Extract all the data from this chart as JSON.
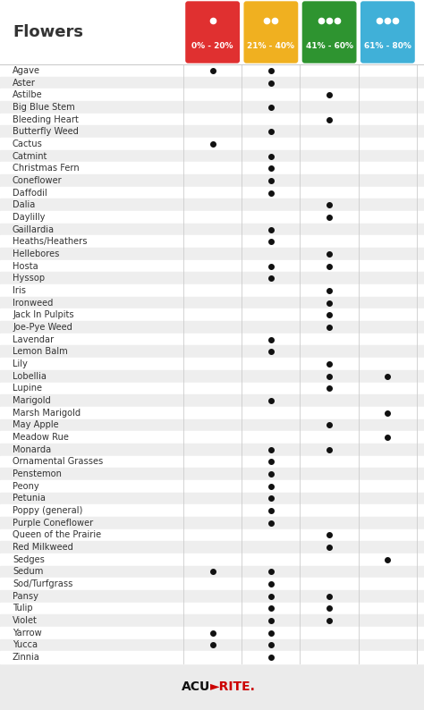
{
  "title": "Flowers",
  "columns": [
    "0% - 20%",
    "21% - 40%",
    "41% - 60%",
    "61% - 80%"
  ],
  "col_colors": [
    "#e03030",
    "#f0b020",
    "#2e9430",
    "#40b0d8"
  ],
  "flowers": [
    "Agave",
    "Aster",
    "Astilbe",
    "Big Blue Stem",
    "Bleeding Heart",
    "Butterfly Weed",
    "Cactus",
    "Catmint",
    "Christmas Fern",
    "Coneflower",
    "Daffodil",
    "Dalia",
    "Daylilly",
    "Gaillardia",
    "Heaths/Heathers",
    "Hellebores",
    "Hosta",
    "Hyssop",
    "Iris",
    "Ironweed",
    "Jack In Pulpits",
    "Joe-Pye Weed",
    "Lavendar",
    "Lemon Balm",
    "Lily",
    "Lobellia",
    "Lupine",
    "Marigold",
    "Marsh Marigold",
    "May Apple",
    "Meadow Rue",
    "Monarda",
    "Ornamental Grasses",
    "Penstemon",
    "Peony",
    "Petunia",
    "Poppy (general)",
    "Purple Coneflower",
    "Queen of the Prairie",
    "Red Milkweed",
    "Sedges",
    "Sedum",
    "Sod/Turfgrass",
    "Pansy",
    "Tulip",
    "Violet",
    "Yarrow",
    "Yucca",
    "Zinnia"
  ],
  "dots": {
    "Agave": [
      1,
      1,
      0,
      0
    ],
    "Aster": [
      0,
      1,
      0,
      0
    ],
    "Astilbe": [
      0,
      0,
      1,
      0
    ],
    "Big Blue Stem": [
      0,
      1,
      0,
      0
    ],
    "Bleeding Heart": [
      0,
      0,
      1,
      0
    ],
    "Butterfly Weed": [
      0,
      1,
      0,
      0
    ],
    "Cactus": [
      1,
      0,
      0,
      0
    ],
    "Catmint": [
      0,
      1,
      0,
      0
    ],
    "Christmas Fern": [
      0,
      1,
      0,
      0
    ],
    "Coneflower": [
      0,
      1,
      0,
      0
    ],
    "Daffodil": [
      0,
      1,
      0,
      0
    ],
    "Dalia": [
      0,
      0,
      1,
      0
    ],
    "Daylilly": [
      0,
      0,
      1,
      0
    ],
    "Gaillardia": [
      0,
      1,
      0,
      0
    ],
    "Heaths/Heathers": [
      0,
      1,
      0,
      0
    ],
    "Hellebores": [
      0,
      0,
      1,
      0
    ],
    "Hosta": [
      0,
      1,
      1,
      0
    ],
    "Hyssop": [
      0,
      1,
      0,
      0
    ],
    "Iris": [
      0,
      0,
      1,
      0
    ],
    "Ironweed": [
      0,
      0,
      1,
      0
    ],
    "Jack In Pulpits": [
      0,
      0,
      1,
      0
    ],
    "Joe-Pye Weed": [
      0,
      0,
      1,
      0
    ],
    "Lavendar": [
      0,
      1,
      0,
      0
    ],
    "Lemon Balm": [
      0,
      1,
      0,
      0
    ],
    "Lily": [
      0,
      0,
      1,
      0
    ],
    "Lobellia": [
      0,
      0,
      1,
      1
    ],
    "Lupine": [
      0,
      0,
      1,
      0
    ],
    "Marigold": [
      0,
      1,
      0,
      0
    ],
    "Marsh Marigold": [
      0,
      0,
      0,
      1
    ],
    "May Apple": [
      0,
      0,
      1,
      0
    ],
    "Meadow Rue": [
      0,
      0,
      0,
      1
    ],
    "Monarda": [
      0,
      1,
      1,
      0
    ],
    "Ornamental Grasses": [
      0,
      1,
      0,
      0
    ],
    "Penstemon": [
      0,
      1,
      0,
      0
    ],
    "Peony": [
      0,
      1,
      0,
      0
    ],
    "Petunia": [
      0,
      1,
      0,
      0
    ],
    "Poppy (general)": [
      0,
      1,
      0,
      0
    ],
    "Purple Coneflower": [
      0,
      1,
      0,
      0
    ],
    "Queen of the Prairie": [
      0,
      0,
      1,
      0
    ],
    "Red Milkweed": [
      0,
      0,
      1,
      0
    ],
    "Sedges": [
      0,
      0,
      0,
      1
    ],
    "Sedum": [
      1,
      1,
      0,
      0
    ],
    "Sod/Turfgrass": [
      0,
      1,
      0,
      0
    ],
    "Pansy": [
      0,
      1,
      1,
      0
    ],
    "Tulip": [
      0,
      1,
      1,
      0
    ],
    "Violet": [
      0,
      1,
      1,
      0
    ],
    "Yarrow": [
      1,
      1,
      0,
      0
    ],
    "Yucca": [
      1,
      1,
      0,
      0
    ],
    "Zinnia": [
      0,
      1,
      0,
      0
    ]
  },
  "bg_color": "#ffffff",
  "row_alt_color": "#eeeeee",
  "row_main_color": "#ffffff",
  "footer_bg": "#ebebeb",
  "dot_color": "#111111",
  "text_color": "#333333",
  "footer_black": "#111111",
  "footer_red": "#cc0000",
  "n_drops": [
    1,
    2,
    3,
    3
  ],
  "fig_w": 4.74,
  "fig_h": 7.94,
  "dpi": 100
}
